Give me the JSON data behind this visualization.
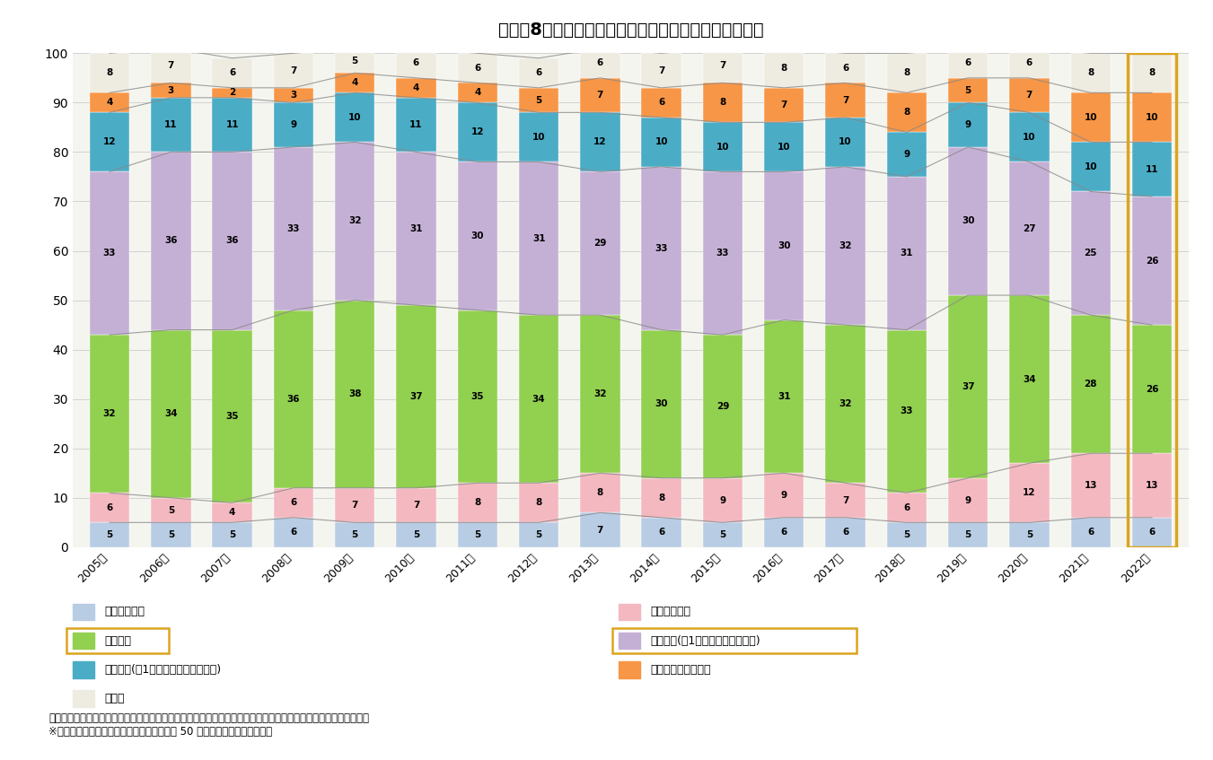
{
  "title": "図表－8　新築マンション購入者の世帯構成（関西圏）",
  "years": [
    "2005年",
    "2006年",
    "2007年",
    "2008年",
    "2009年",
    "2010年",
    "2011年",
    "2012年",
    "2013年",
    "2014年",
    "2015年",
    "2016年",
    "2017年",
    "2018年",
    "2019年",
    "2020年",
    "2021年",
    "2022年"
  ],
  "categories": [
    "シングル男性",
    "シングル女性",
    "夫婦のみ",
    "子供あり(第1子小学校入学前世帯)",
    "子供あり(第1子小学校入学以上世帯)",
    "シニアカップル世帯",
    "その他"
  ],
  "colors": [
    "#b8cce4",
    "#f4b8c1",
    "#92d050",
    "#c5b0d5",
    "#4bacc6",
    "#f79646",
    "#eeece1"
  ],
  "data": {
    "シングル男性": [
      5,
      5,
      5,
      6,
      5,
      5,
      5,
      5,
      7,
      6,
      5,
      6,
      6,
      5,
      5,
      5,
      6,
      6
    ],
    "シングル女性": [
      6,
      5,
      4,
      6,
      7,
      7,
      8,
      8,
      8,
      8,
      9,
      9,
      7,
      6,
      9,
      12,
      13,
      13
    ],
    "夫婦のみ": [
      32,
      34,
      35,
      36,
      38,
      37,
      35,
      34,
      32,
      30,
      29,
      31,
      32,
      33,
      37,
      34,
      28,
      26
    ],
    "子供あり(第1子小学校入学前世帯)": [
      33,
      36,
      36,
      33,
      32,
      31,
      30,
      31,
      29,
      33,
      33,
      30,
      32,
      31,
      30,
      27,
      25,
      26
    ],
    "子供あり(第1子小学校入学以上世帯)": [
      12,
      11,
      11,
      9,
      10,
      11,
      12,
      10,
      12,
      10,
      10,
      10,
      10,
      9,
      9,
      10,
      10,
      11
    ],
    "シニアカップル世帯": [
      4,
      3,
      2,
      3,
      4,
      4,
      4,
      5,
      7,
      6,
      8,
      7,
      7,
      8,
      5,
      7,
      10,
      10
    ],
    "その他": [
      8,
      7,
      6,
      7,
      5,
      6,
      6,
      6,
      6,
      7,
      7,
      8,
      6,
      8,
      6,
      6,
      8,
      8
    ]
  },
  "ylim": [
    0,
    100
  ],
  "background_color": "#ffffff",
  "plot_bg_color": "#f5f5f0",
  "grid_color": "#cccccc",
  "highlight_col_idx": 17,
  "source_text": "（出所）リクルート住まいカンパニー「関西圏新築マンション契約者動向調査」をもとにニッセイ基礎研究所作成\n※　シニアカップル世帯・・・世帯主年齢が 50 才以上の夫婦のみの世帯。"
}
